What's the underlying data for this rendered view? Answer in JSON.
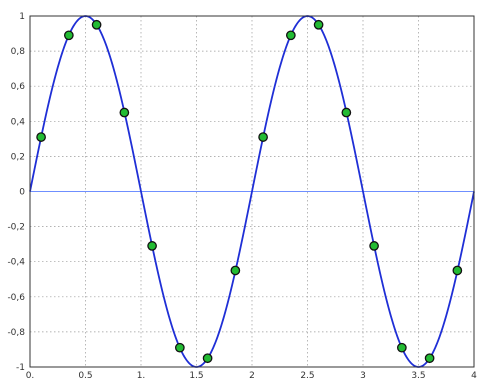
{
  "chart_data": {
    "type": "line",
    "title": "",
    "xlabel": "",
    "ylabel": "",
    "xlim": [
      0,
      4
    ],
    "ylim": [
      -1,
      1
    ],
    "grid": true,
    "x_ticks": [
      0,
      0.5,
      1,
      1.5,
      2,
      2.5,
      3,
      3.5,
      4
    ],
    "x_tick_labels": [
      "0.",
      "0.5",
      "1.",
      "1.5",
      "2",
      "2.5",
      "3",
      "3.5",
      "4"
    ],
    "y_ticks": [
      1,
      0.8,
      0.6,
      0.4,
      0.2,
      0,
      -0.2,
      -0.4,
      -0.6,
      -0.8,
      -1
    ],
    "y_tick_labels": [
      "1",
      "0,8",
      "0,6",
      "0,4",
      "0,2",
      "0",
      "-0,2",
      "-0,4",
      "-0,6",
      "-0,8",
      "-1"
    ],
    "series": [
      {
        "kind": "sine-curve",
        "amplitude": 1,
        "period": 2,
        "color": "#1f2fd6"
      },
      {
        "kind": "baseline",
        "y": 0,
        "color": "#6f8fff"
      },
      {
        "kind": "samples",
        "marker_fill": "#22bb33",
        "marker_edge": "#111111",
        "x": [
          0.1,
          0.35,
          0.6,
          0.85,
          1.1,
          1.35,
          1.6,
          1.85,
          2.1,
          2.35,
          2.6,
          2.85,
          3.1,
          3.35,
          3.6,
          3.85
        ],
        "y": [
          0.31,
          0.89,
          0.95,
          0.45,
          -0.31,
          -0.89,
          -0.95,
          -0.45,
          0.31,
          0.89,
          0.95,
          0.45,
          -0.31,
          -0.89,
          -0.95,
          -0.45
        ]
      }
    ]
  }
}
